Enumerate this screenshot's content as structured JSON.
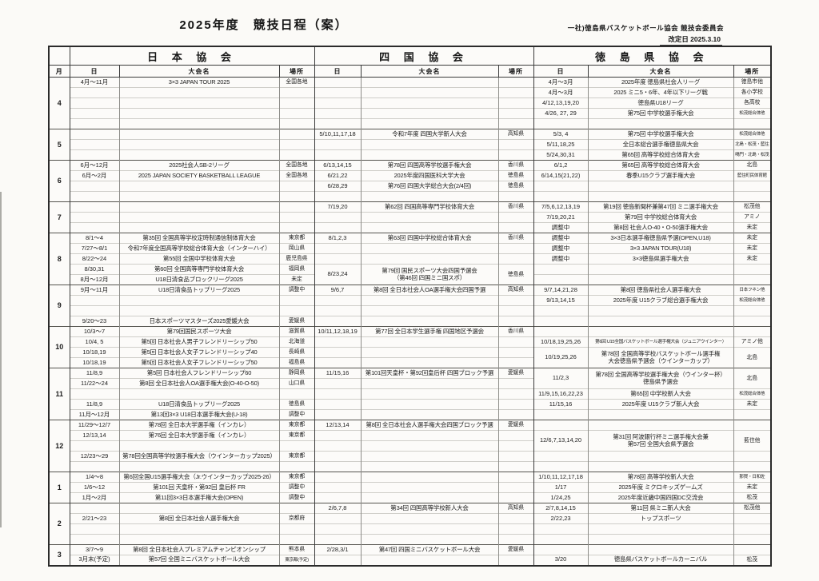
{
  "page": {
    "title": "2025年度　競技日程（案）",
    "org": "一社)徳島県バスケットボール協会 競技会委員会",
    "revision": "改定日 2025.3.10"
  },
  "table": {
    "sections": [
      "日 本 協 会",
      "四 国 協 会",
      "徳 島 県 協 会"
    ],
    "sub_headers": [
      "月",
      "日",
      "大会名",
      "場所",
      "日",
      "大会名",
      "場所",
      "日",
      "大会名",
      "場所"
    ],
    "months": [
      {
        "month": "4",
        "rows": 5,
        "japan": [
          {
            "r": 0,
            "date": "4月～11月",
            "name": "3×3 JAPAN TOUR 2025",
            "place": "全国各地"
          }
        ],
        "shikoku": [],
        "tokushima": [
          {
            "r": 0,
            "date": "4月～3月",
            "name": "2025年度 徳島県社会人リーグ",
            "place": "徳島市他"
          },
          {
            "r": 1,
            "date": "4月～3月",
            "name": "2025 ミニ5・6年、4年以下リーグ戦",
            "place": "各小学校"
          },
          {
            "r": 2,
            "date": "4/12,13,19,20",
            "name": "徳島県U18リーグ",
            "place": "各高校"
          },
          {
            "r": 3,
            "date": "4/26, 27, 29",
            "name": "第75回 中学校選手権大会",
            "place": "松茂総合体他",
            "smallPlace": true
          }
        ]
      },
      {
        "month": "5",
        "rows": 3,
        "japan": [],
        "shikoku": [
          {
            "r": 0,
            "date": "5/10,11,17,18",
            "name": "令和7年度 四国大学新人大会",
            "place": "高知県"
          }
        ],
        "tokushima": [
          {
            "r": 0,
            "date": "5/3, 4",
            "name": "第75回 中学校選手権大会",
            "place": "松茂総合体他",
            "smallPlace": true
          },
          {
            "r": 1,
            "date": "5/11,18,25",
            "name": "全日本総合選手権徳島県大会",
            "place": "北島・松茂・藍住",
            "smallPlace": true
          },
          {
            "r": 2,
            "date": "5/24,30,31",
            "name": "第65回 高等学校総合体育大会",
            "place": "鳴門・北島・松茂",
            "smallPlace": true
          }
        ]
      },
      {
        "month": "6",
        "rows": 4,
        "japan": [
          {
            "r": 0,
            "date": "6月～12月",
            "name": "2025社会人SB-2リーグ",
            "place": "全国各地"
          },
          {
            "r": 1,
            "date": "6月～2月",
            "name": "2025 JAPAN SOCIETY BASKETBALL LEAGUE",
            "place": "全国各地"
          }
        ],
        "shikoku": [
          {
            "r": 0,
            "date": "6/13,14,15",
            "name": "第78回 四国高等学校選手権大会",
            "place": "香川県"
          },
          {
            "r": 1,
            "date": "6/21,22",
            "name": "2025年度四国医科大学大会",
            "place": "徳島県"
          },
          {
            "r": 2,
            "date": "6/28,29",
            "name": "第76回 四国大学総合大会(2/4回)",
            "place": "徳島県"
          }
        ],
        "tokushima": [
          {
            "r": 0,
            "date": "6/1,2",
            "name": "第65回 高等学校総合体育大会",
            "place": "北島"
          },
          {
            "r": 1,
            "date": "6/14,15(21,22)",
            "name": "春季U15クラブ選手権大会",
            "place": "藍住町民体育館",
            "smallPlace": true
          }
        ]
      },
      {
        "month": "7",
        "rows": 3,
        "japan": [],
        "shikoku": [
          {
            "r": 0,
            "date": "7/19,20",
            "name": "第62回 四国高等専門学校体育大会",
            "place": "香川県"
          }
        ],
        "tokushima": [
          {
            "r": 0,
            "date": "7/5,6,12,13,19",
            "name": "第19回 徳島新聞杯兼第47回 ミニ選手権大会",
            "place": "松茂他"
          },
          {
            "r": 1,
            "date": "7/19,20,21",
            "name": "第79回 中学校総合体育大会",
            "place": "アミノ"
          },
          {
            "r": 2,
            "date": "調整中",
            "name": "第8回 社会人O-40・O-50選手権大会",
            "place": "未定"
          }
        ]
      },
      {
        "month": "8",
        "rows": 5,
        "japan": [
          {
            "r": 0,
            "date": "8/1～4",
            "name": "第35回 全国高等学校定時制通信制体育大会",
            "place": "東京都"
          },
          {
            "r": 1,
            "date": "7/27～8/1",
            "name": "令和7年度全国高等学校総合体育大会（インターハイ）",
            "place": "岡山県"
          },
          {
            "r": 2,
            "date": "8/22～24",
            "name": "第55回 全国中学校体育大会",
            "place": "鹿児島県"
          },
          {
            "r": 3,
            "date": "8/30,31",
            "name": "第60回 全国高等専門学校体育大会",
            "place": "福岡県"
          },
          {
            "r": 4,
            "date": "8月～12月",
            "name": "U18日清食品ブロックリーグ2025",
            "place": "未定"
          }
        ],
        "shikoku": [
          {
            "r": 0,
            "date": "8/1,2,3",
            "name": "第63回 四国中学校総合体育大会",
            "place": "香川県"
          },
          {
            "r": 3,
            "span": 2,
            "date": "8/23,24",
            "name": "第79回 国民スポーツ大会四国予選会",
            "name2": "（第46回 四国ミニ国スポ）",
            "place": "徳島県"
          }
        ],
        "tokushima": [
          {
            "r": 0,
            "date": "調整中",
            "name": "3×3日本選手権徳島県予選(OPEN,U18)",
            "place": "未定"
          },
          {
            "r": 1,
            "date": "調整中",
            "name": "3×3 JAPAN TOUR(U18)",
            "place": "未定"
          },
          {
            "r": 2,
            "date": "調整中",
            "name": "3×3徳島県選手権大会",
            "place": "未定"
          }
        ]
      },
      {
        "month": "9",
        "rows": 4,
        "japan": [
          {
            "r": 0,
            "date": "9月～11月",
            "name": "U18日清食品トップリーグ2025",
            "place": "調整中"
          },
          {
            "r": 3,
            "date": "9/20～23",
            "name": "日本スポーツマスターズ2025愛媛大会",
            "place": "愛媛県"
          }
        ],
        "shikoku": [
          {
            "r": 0,
            "date": "9/6,7",
            "name": "第8回 全日本社会人OA選手権大会四国予選",
            "place": "高知県"
          }
        ],
        "tokushima": [
          {
            "r": 0,
            "date": "9/7,14,21,28",
            "name": "第8回 徳島県社会人選手権大会",
            "place": "日本フネン他",
            "smallPlace": true
          },
          {
            "r": 1,
            "date": "9/13,14,15",
            "name": "2025年度 U15クラブ総合選手権大会",
            "place": "松茂総合体他",
            "smallPlace": true
          }
        ]
      },
      {
        "month": "10",
        "rows": 4,
        "japan": [
          {
            "r": 0,
            "date": "10/3～7",
            "name": "第79回国民スポーツ大会",
            "place": "滋賀県"
          },
          {
            "r": 1,
            "date": "10/4, 5",
            "name": "第5回 日本社会人男子フレンドリーシップ50",
            "place": "北海道"
          },
          {
            "r": 2,
            "date": "10/18,19",
            "name": "第5回 日本社会人女子フレンドリーシップ40",
            "place": "長崎県"
          },
          {
            "r": 3,
            "date": "10/18,19",
            "name": "第5回 日本社会人女子フレンドリーシップ50",
            "place": "福島県"
          }
        ],
        "shikoku": [
          {
            "r": 0,
            "date": "10/11,12,18,19",
            "name": "第77回 全日本学生選手権 四国地区予選会",
            "place": "香川県"
          }
        ],
        "tokushima": [
          {
            "r": 1,
            "date": "10/18,19,25,26",
            "name": "第6回 U15全国バスケットボール選手権大会（ジュニアウインター）",
            "place": "アミノ他",
            "smallName": true
          },
          {
            "r": 2,
            "span": 2,
            "date": "10/19,25,26",
            "name": "第78回 全国高等学校バスケットボール選手権",
            "name2": "大会徳島県予選会（ウインターカップ）",
            "place": "北島"
          }
        ]
      },
      {
        "month": "11",
        "rows": 5,
        "japan": [
          {
            "r": 0,
            "date": "11/8,9",
            "name": "第5回 日本社会人フレンドリーシップ60",
            "place": "静岡県"
          },
          {
            "r": 1,
            "date": "11/22～24",
            "name": "第8回 全日本社会人OA選手権大会(O-40-O-50)",
            "place": "山口県"
          },
          {
            "r": 3,
            "date": "11/8,9",
            "name": "U18日清食品トップリーグ2025",
            "place": "徳島県"
          },
          {
            "r": 4,
            "date": "11月～12月",
            "name": "第13回3×3 U18日本選手権大会(U-18)",
            "place": "調整中"
          }
        ],
        "shikoku": [
          {
            "r": 0,
            "date": "11/15,16",
            "name": "第101回天皇杯・第92回皇后杯 四国ブロック予選",
            "place": "愛媛県"
          }
        ],
        "tokushima": [
          {
            "r": 0,
            "span": 2,
            "date": "11/2,3",
            "name": "第78回 全国高等学校選手権大会（ウインター杯）",
            "name2": "徳島県予選会",
            "place": "北島"
          },
          {
            "r": 2,
            "date": "11/9,15,16,22,23",
            "name": "第65回 中学校新人大会",
            "place": "松茂総合体他",
            "smallPlace": true
          },
          {
            "r": 3,
            "date": "11/15,16",
            "name": "2025年度 U15クラブ新人大会",
            "place": "未定"
          }
        ]
      },
      {
        "month": "12",
        "rows": 5,
        "japan": [
          {
            "r": 0,
            "date": "11/29～12/7",
            "name": "第78回 全日本大学選手権（インカレ）",
            "place": "東京都"
          },
          {
            "r": 1,
            "date": "12/13,14",
            "name": "第76回 全日本大学選手権（インカレ）",
            "place": "東京都"
          },
          {
            "r": 3,
            "date": "12/23～29",
            "name": "第78回全国高等学校選手権大会（ウインターカップ2025）",
            "place": "東京都"
          }
        ],
        "shikoku": [
          {
            "r": 0,
            "date": "12/13,14",
            "name": "第8回 全日本社会人選手権大会四国ブロック予選",
            "place": "愛媛県"
          }
        ],
        "tokushima": [
          {
            "r": 1,
            "span": 2,
            "date": "12/6,7,13,14,20",
            "name": "第31回 阿波銀行杯ミニ選手権大会兼",
            "name2": "第57回 全国大会県予選会",
            "place": "藍住他"
          }
        ]
      },
      {
        "month": "1",
        "rows": 3,
        "japan": [
          {
            "r": 0,
            "date": "1/4～8",
            "name": "第6回全国U15選手権大会（Jr.ウインターカップ2025-26）",
            "place": "東京都"
          },
          {
            "r": 1,
            "date": "1/6～12",
            "name": "第101回 天皇杯・第92回 皇后杯  FR",
            "place": "調整中"
          },
          {
            "r": 2,
            "date": "1月～2月",
            "name": "第11回3×3日本選手権大会(OPEN)",
            "place": "調整中"
          }
        ],
        "shikoku": [],
        "tokushima": [
          {
            "r": 0,
            "date": "1/10,11,12,17,18",
            "name": "第78回 高等学校新人大会",
            "place": "那賀・日和佐",
            "smallPlace": true
          },
          {
            "r": 1,
            "date": "1/17",
            "name": "2025年度 ミクロキッズゲームズ",
            "place": "未定"
          },
          {
            "r": 2,
            "date": "1/24,25",
            "name": "2025年度近畿中国四国DC交流会",
            "place": "松茂"
          }
        ]
      },
      {
        "month": "2",
        "rows": 4,
        "japan": [
          {
            "r": 1,
            "date": "2/21～23",
            "name": "第8回 全日本社会人選手権大会",
            "place": "京都府"
          }
        ],
        "shikoku": [
          {
            "r": 0,
            "date": "2/6,7,8",
            "name": "第34回 四国高等学校新人大会",
            "place": "高知県"
          }
        ],
        "tokushima": [
          {
            "r": 0,
            "date": "2/7,8,14,15",
            "name": "第11回 県ミニ新人大会",
            "place": "松茂他"
          },
          {
            "r": 1,
            "date": "2/22,23",
            "name": "トップスポーツ",
            "place": ""
          }
        ]
      },
      {
        "month": "3",
        "rows": 2,
        "japan": [
          {
            "r": 0,
            "date": "3/7～9",
            "name": "第8回 全日本社会人プレミアムチャンピオンシップ",
            "place": "熊本県"
          },
          {
            "r": 1,
            "date": "3月末(予定)",
            "name": "第57回 全国ミニバスケットボール大会",
            "place": "東京都(予定)",
            "smallPlace": true
          }
        ],
        "shikoku": [
          {
            "r": 0,
            "date": "2/28,3/1",
            "name": "第47回 四国ミニバスケットボール大会",
            "place": "愛媛県"
          }
        ],
        "tokushima": [
          {
            "r": 1,
            "date": "3/20",
            "name": "徳島県バスケットボールカーニバル",
            "place": "松茂"
          }
        ]
      }
    ]
  }
}
